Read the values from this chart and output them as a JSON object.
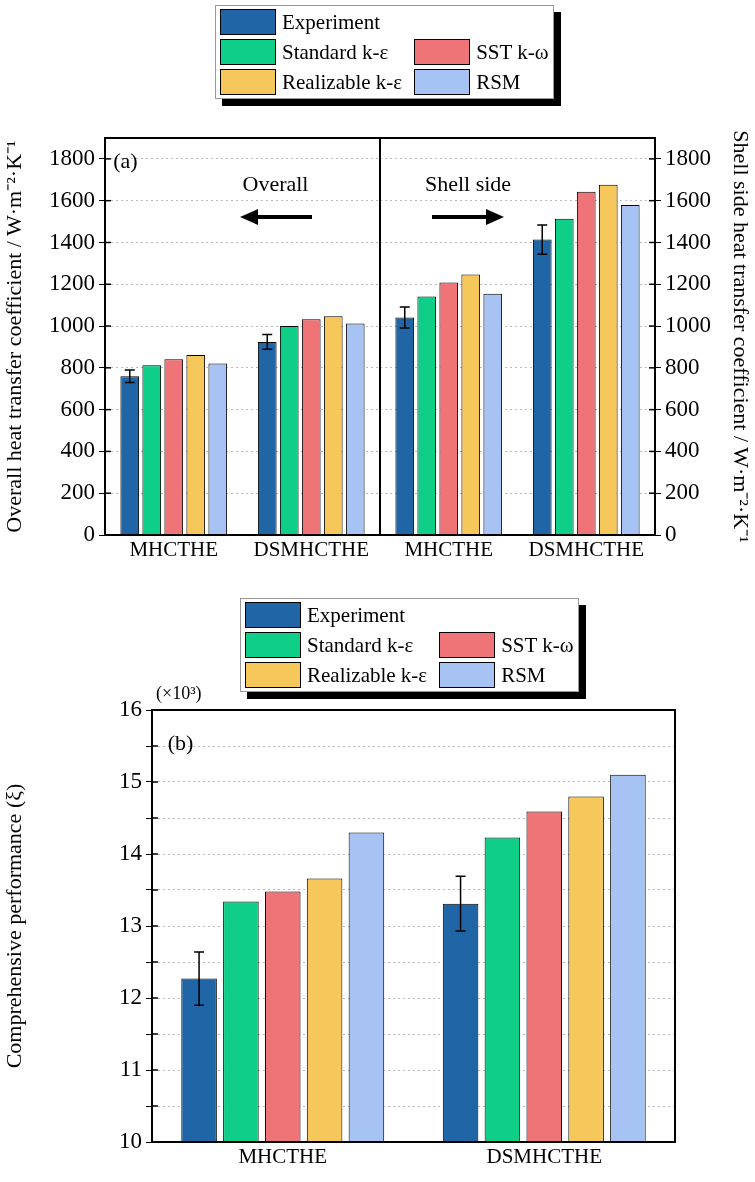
{
  "chart_data": [
    {
      "type": "bar",
      "categories": [
        "MHCTHE",
        "DSMHCTHE"
      ],
      "ylabel": "Overall heat transfer coefficient / W·m⁻²·K⁻¹",
      "ylim": [
        0,
        1900
      ],
      "yticks": [
        0,
        200,
        400,
        600,
        800,
        1000,
        1200,
        1400,
        1600,
        1800
      ],
      "grid": "y",
      "legend": "top",
      "annotations": [
        "(a)",
        "Overall"
      ],
      "series": [
        {
          "name": "Experiment",
          "color": "#2065a5",
          "values": [
            760,
            924
          ],
          "errors": [
            30,
            35
          ]
        },
        {
          "name": "Standard k-ε",
          "color": "#0fcf88",
          "values": [
            812,
            1000
          ]
        },
        {
          "name": "SST k-ω",
          "color": "#ef7478",
          "values": [
            841,
            1033
          ]
        },
        {
          "name": "Realizable k-ε",
          "color": "#f6c75b",
          "values": [
            862,
            1047
          ]
        },
        {
          "name": "RSM",
          "color": "#a6c3f3",
          "values": [
            821,
            1012
          ]
        }
      ]
    },
    {
      "type": "bar",
      "categories": [
        "MHCTHE",
        "DSMHCTHE"
      ],
      "y2label": "Shell side heat transfer coefficient / W·m⁻²·K⁻¹",
      "y2lim": [
        0,
        1900
      ],
      "y2ticks": [
        0,
        200,
        400,
        600,
        800,
        1000,
        1200,
        1400,
        1600,
        1800
      ],
      "grid": "y",
      "annotations": [
        "Shell side"
      ],
      "series": [
        {
          "color": "#2065a5",
          "axis": "y2",
          "values": [
            1041,
            1414
          ],
          "errors": [
            50,
            70
          ]
        },
        {
          "color": "#0fcf88",
          "axis": "y2",
          "values": [
            1142,
            1513
          ]
        },
        {
          "color": "#ef7478",
          "axis": "y2",
          "values": [
            1208,
            1643
          ]
        },
        {
          "color": "#f6c75b",
          "axis": "y2",
          "values": [
            1247,
            1676
          ]
        },
        {
          "color": "#a6c3f3",
          "axis": "y2",
          "values": [
            1155,
            1579
          ]
        }
      ]
    },
    {
      "type": "bar",
      "categories": [
        "MHCTHE",
        "DSMHCTHE"
      ],
      "ylabel": "Comprehensive performance (ξ)",
      "ylim": [
        10,
        16
      ],
      "yticks": [
        10,
        {
          "value": 10.5,
          "label": null
        },
        11,
        {
          "value": 11.5,
          "label": null
        },
        12,
        {
          "value": 12.5,
          "label": null
        },
        13,
        {
          "value": 13.5,
          "label": null
        },
        14,
        {
          "value": 14.5,
          "label": null
        },
        15,
        {
          "value": 15.5,
          "label": null
        },
        16
      ],
      "grid": "y",
      "legend": "top",
      "annotations": [
        "(b)",
        "(×10³)"
      ],
      "series": [
        {
          "name": "Experiment",
          "color": "#2065a5",
          "values": [
            12.27,
            13.31
          ],
          "errors": [
            0.37,
            0.38
          ]
        },
        {
          "name": "Standard k-ε",
          "color": "#0fcf88",
          "values": [
            13.34,
            14.23
          ]
        },
        {
          "name": "SST k-ω",
          "color": "#ef7478",
          "values": [
            13.48,
            14.59
          ]
        },
        {
          "name": "Realizable k-ε",
          "color": "#f6c75b",
          "values": [
            13.66,
            14.8
          ]
        },
        {
          "name": "RSM",
          "color": "#a6c3f3",
          "values": [
            14.3,
            15.1
          ]
        }
      ]
    }
  ]
}
